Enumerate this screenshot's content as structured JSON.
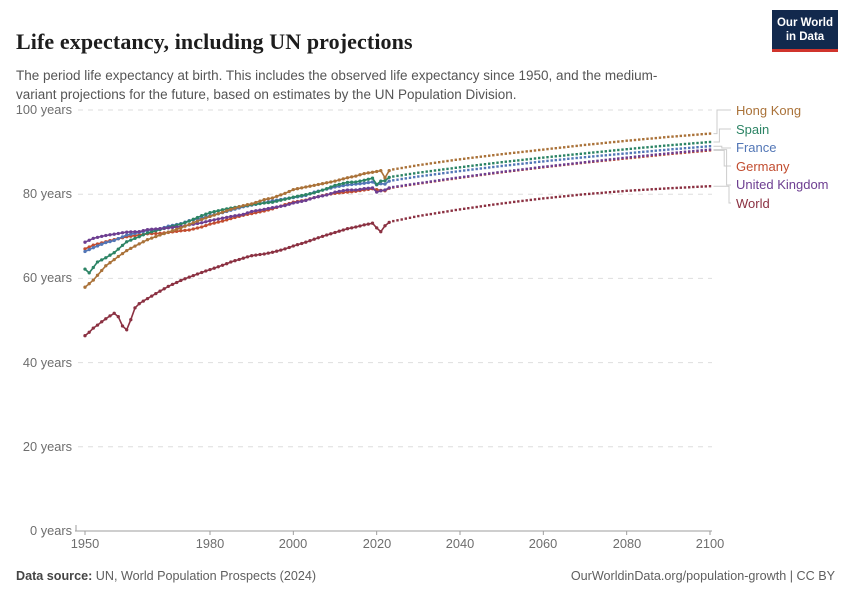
{
  "header": {
    "title": "Life expectancy, including UN projections",
    "subtitle": "The period life expectancy at birth. This includes the observed life expectancy since 1950, and the medium-variant projections for the future, based on estimates by the UN Population Division.",
    "logo": {
      "line1": "Our World",
      "line2": "in Data",
      "bg_color": "#12294d",
      "accent_color": "#d0342c"
    }
  },
  "footer": {
    "source_label": "Data source:",
    "source_text": "UN, World Population Prospects (2024)",
    "link_text": "OurWorldinData.org/population-growth | CC BY"
  },
  "chart_data": {
    "type": "line",
    "title": "Life expectancy, including UN projections",
    "xlabel": "",
    "ylabel": "",
    "units": "years",
    "xlim": [
      1950,
      2100
    ],
    "ylim": [
      0,
      100
    ],
    "grid": "horizontal-dashed",
    "legend_position": "right-line-labels",
    "observed_end_year": 2023,
    "projection_start_year": 2024,
    "projection_style": "dotted",
    "x_ticks": [
      1950,
      1980,
      2000,
      2020,
      2040,
      2060,
      2080,
      2100
    ],
    "y_ticks": [
      {
        "value": 100,
        "label": "100 years"
      },
      {
        "value": 80,
        "label": "80 years"
      },
      {
        "value": 60,
        "label": "60 years"
      },
      {
        "value": 40,
        "label": "40 years"
      },
      {
        "value": 20,
        "label": "20 years"
      },
      {
        "value": 0,
        "label": "0 years"
      }
    ],
    "axis_colors": {
      "gridline": "#dedede",
      "axis_line": "#9e9e9e",
      "tick_label": "#6e6e6e",
      "connector": "#cccccc"
    },
    "series": [
      {
        "name": "Hong Kong",
        "color": "#AA7239",
        "observed": [
          [
            1950,
            57.9
          ],
          [
            1952,
            59.6
          ],
          [
            1955,
            63.0
          ],
          [
            1958,
            65.2
          ],
          [
            1960,
            66.6
          ],
          [
            1963,
            68.2
          ],
          [
            1965,
            69.2
          ],
          [
            1968,
            70.3
          ],
          [
            1970,
            71.0
          ],
          [
            1973,
            72.0
          ],
          [
            1975,
            72.8
          ],
          [
            1978,
            74.0
          ],
          [
            1980,
            74.7
          ],
          [
            1983,
            75.7
          ],
          [
            1985,
            76.4
          ],
          [
            1988,
            77.3
          ],
          [
            1990,
            77.7
          ],
          [
            1993,
            78.7
          ],
          [
            1995,
            79.1
          ],
          [
            1998,
            80.2
          ],
          [
            2000,
            81.1
          ],
          [
            2003,
            81.7
          ],
          [
            2005,
            82.1
          ],
          [
            2008,
            82.7
          ],
          [
            2010,
            83.1
          ],
          [
            2013,
            83.9
          ],
          [
            2015,
            84.3
          ],
          [
            2017,
            84.9
          ],
          [
            2019,
            85.2
          ],
          [
            2020,
            85.4
          ],
          [
            2021,
            85.6
          ],
          [
            2022,
            83.9
          ],
          [
            2023,
            85.6
          ]
        ],
        "projection": [
          [
            2024,
            85.9
          ],
          [
            2030,
            86.9
          ],
          [
            2040,
            88.3
          ],
          [
            2050,
            89.5
          ],
          [
            2060,
            90.6
          ],
          [
            2070,
            91.7
          ],
          [
            2080,
            92.7
          ],
          [
            2090,
            93.6
          ],
          [
            2100,
            94.4
          ]
        ]
      },
      {
        "name": "Spain",
        "color": "#2C8465",
        "observed": [
          [
            1950,
            62.2
          ],
          [
            1951,
            61.3
          ],
          [
            1953,
            63.9
          ],
          [
            1955,
            64.9
          ],
          [
            1957,
            66.1
          ],
          [
            1960,
            68.7
          ],
          [
            1963,
            69.9
          ],
          [
            1965,
            70.8
          ],
          [
            1968,
            71.6
          ],
          [
            1970,
            72.1
          ],
          [
            1973,
            72.9
          ],
          [
            1975,
            73.6
          ],
          [
            1978,
            74.9
          ],
          [
            1980,
            75.6
          ],
          [
            1983,
            76.3
          ],
          [
            1985,
            76.7
          ],
          [
            1988,
            77.2
          ],
          [
            1990,
            77.5
          ],
          [
            1993,
            77.9
          ],
          [
            1995,
            78.1
          ],
          [
            1998,
            78.8
          ],
          [
            2000,
            79.3
          ],
          [
            2003,
            79.9
          ],
          [
            2005,
            80.3
          ],
          [
            2008,
            81.3
          ],
          [
            2010,
            82.1
          ],
          [
            2013,
            82.8
          ],
          [
            2015,
            82.9
          ],
          [
            2017,
            83.3
          ],
          [
            2019,
            83.8
          ],
          [
            2020,
            82.3
          ],
          [
            2021,
            83.1
          ],
          [
            2022,
            83.2
          ],
          [
            2023,
            84.0
          ]
        ],
        "projection": [
          [
            2024,
            84.2
          ],
          [
            2030,
            85.1
          ],
          [
            2040,
            86.4
          ],
          [
            2050,
            87.6
          ],
          [
            2060,
            88.7
          ],
          [
            2070,
            89.7
          ],
          [
            2080,
            90.7
          ],
          [
            2090,
            91.6
          ],
          [
            2100,
            92.4
          ]
        ]
      },
      {
        "name": "France",
        "color": "#5276B6",
        "observed": [
          [
            1950,
            66.4
          ],
          [
            1952,
            67.3
          ],
          [
            1955,
            68.5
          ],
          [
            1957,
            69.0
          ],
          [
            1960,
            70.3
          ],
          [
            1963,
            70.9
          ],
          [
            1965,
            71.4
          ],
          [
            1968,
            71.8
          ],
          [
            1970,
            72.4
          ],
          [
            1973,
            73.0
          ],
          [
            1975,
            73.7
          ],
          [
            1978,
            74.3
          ],
          [
            1980,
            74.9
          ],
          [
            1983,
            75.6
          ],
          [
            1985,
            76.2
          ],
          [
            1988,
            77.0
          ],
          [
            1990,
            77.4
          ],
          [
            1993,
            78.0
          ],
          [
            1995,
            78.4
          ],
          [
            1998,
            78.9
          ],
          [
            2000,
            79.2
          ],
          [
            2003,
            79.7
          ],
          [
            2005,
            80.5
          ],
          [
            2008,
            81.2
          ],
          [
            2010,
            81.7
          ],
          [
            2013,
            82.2
          ],
          [
            2015,
            82.4
          ],
          [
            2017,
            82.6
          ],
          [
            2019,
            82.9
          ],
          [
            2020,
            82.2
          ],
          [
            2021,
            82.5
          ],
          [
            2022,
            82.4
          ],
          [
            2023,
            83.1
          ]
        ],
        "projection": [
          [
            2024,
            83.3
          ],
          [
            2030,
            84.2
          ],
          [
            2040,
            85.5
          ],
          [
            2050,
            86.7
          ],
          [
            2060,
            87.8
          ],
          [
            2070,
            88.8
          ],
          [
            2080,
            89.7
          ],
          [
            2090,
            90.6
          ],
          [
            2100,
            91.4
          ]
        ]
      },
      {
        "name": "Germany",
        "color": "#C24D30",
        "observed": [
          [
            1950,
            67.0
          ],
          [
            1952,
            67.9
          ],
          [
            1955,
            68.7
          ],
          [
            1957,
            69.2
          ],
          [
            1960,
            69.9
          ],
          [
            1963,
            70.3
          ],
          [
            1965,
            70.6
          ],
          [
            1968,
            70.7
          ],
          [
            1970,
            70.9
          ],
          [
            1973,
            71.3
          ],
          [
            1975,
            71.5
          ],
          [
            1978,
            72.2
          ],
          [
            1980,
            72.9
          ],
          [
            1983,
            73.6
          ],
          [
            1985,
            74.2
          ],
          [
            1988,
            75.0
          ],
          [
            1990,
            75.4
          ],
          [
            1993,
            76.0
          ],
          [
            1995,
            76.5
          ],
          [
            1998,
            77.5
          ],
          [
            2000,
            78.1
          ],
          [
            2003,
            78.6
          ],
          [
            2005,
            79.2
          ],
          [
            2008,
            79.9
          ],
          [
            2010,
            80.2
          ],
          [
            2013,
            80.5
          ],
          [
            2015,
            80.7
          ],
          [
            2017,
            81.0
          ],
          [
            2019,
            81.3
          ],
          [
            2020,
            81.1
          ],
          [
            2021,
            80.9
          ],
          [
            2022,
            80.8
          ],
          [
            2023,
            81.4
          ]
        ],
        "projection": [
          [
            2024,
            81.6
          ],
          [
            2030,
            82.5
          ],
          [
            2040,
            83.9
          ],
          [
            2050,
            85.2
          ],
          [
            2060,
            86.4
          ],
          [
            2070,
            87.5
          ],
          [
            2080,
            88.5
          ],
          [
            2090,
            89.5
          ],
          [
            2100,
            90.4
          ]
        ]
      },
      {
        "name": "United Kingdom",
        "color": "#6D3E91",
        "observed": [
          [
            1950,
            68.6
          ],
          [
            1952,
            69.5
          ],
          [
            1955,
            70.2
          ],
          [
            1957,
            70.5
          ],
          [
            1960,
            71.0
          ],
          [
            1963,
            71.1
          ],
          [
            1965,
            71.6
          ],
          [
            1968,
            71.8
          ],
          [
            1970,
            72.0
          ],
          [
            1973,
            72.3
          ],
          [
            1975,
            72.7
          ],
          [
            1978,
            73.2
          ],
          [
            1980,
            73.7
          ],
          [
            1983,
            74.3
          ],
          [
            1985,
            74.7
          ],
          [
            1988,
            75.2
          ],
          [
            1990,
            75.9
          ],
          [
            1993,
            76.4
          ],
          [
            1995,
            76.8
          ],
          [
            1998,
            77.3
          ],
          [
            2000,
            77.9
          ],
          [
            2003,
            78.5
          ],
          [
            2005,
            79.2
          ],
          [
            2008,
            79.8
          ],
          [
            2010,
            80.5
          ],
          [
            2013,
            81.0
          ],
          [
            2015,
            81.0
          ],
          [
            2017,
            81.3
          ],
          [
            2019,
            81.5
          ],
          [
            2020,
            80.5
          ],
          [
            2021,
            80.8
          ],
          [
            2022,
            81.0
          ],
          [
            2023,
            81.5
          ]
        ],
        "projection": [
          [
            2024,
            81.7
          ],
          [
            2030,
            82.6
          ],
          [
            2040,
            84.0
          ],
          [
            2050,
            85.3
          ],
          [
            2060,
            86.5
          ],
          [
            2070,
            87.6
          ],
          [
            2080,
            88.7
          ],
          [
            2090,
            89.7
          ],
          [
            2100,
            90.6
          ]
        ]
      },
      {
        "name": "World",
        "color": "#8B3142",
        "observed": [
          [
            1950,
            46.4
          ],
          [
            1951,
            47.2
          ],
          [
            1952,
            48.2
          ],
          [
            1953,
            48.9
          ],
          [
            1954,
            49.7
          ],
          [
            1955,
            50.4
          ],
          [
            1956,
            51.1
          ],
          [
            1957,
            51.7
          ],
          [
            1958,
            50.9
          ],
          [
            1959,
            48.7
          ],
          [
            1960,
            47.8
          ],
          [
            1961,
            50.2
          ],
          [
            1962,
            53.0
          ],
          [
            1963,
            54.0
          ],
          [
            1965,
            55.2
          ],
          [
            1967,
            56.4
          ],
          [
            1970,
            58.1
          ],
          [
            1973,
            59.5
          ],
          [
            1975,
            60.3
          ],
          [
            1978,
            61.4
          ],
          [
            1980,
            62.1
          ],
          [
            1983,
            63.1
          ],
          [
            1985,
            63.9
          ],
          [
            1988,
            64.8
          ],
          [
            1990,
            65.4
          ],
          [
            1993,
            65.8
          ],
          [
            1995,
            66.2
          ],
          [
            1998,
            67.0
          ],
          [
            2000,
            67.7
          ],
          [
            2003,
            68.6
          ],
          [
            2005,
            69.3
          ],
          [
            2008,
            70.3
          ],
          [
            2010,
            70.9
          ],
          [
            2013,
            71.8
          ],
          [
            2015,
            72.2
          ],
          [
            2017,
            72.7
          ],
          [
            2019,
            73.1
          ],
          [
            2020,
            72.0
          ],
          [
            2021,
            71.1
          ],
          [
            2022,
            72.5
          ],
          [
            2023,
            73.3
          ]
        ],
        "projection": [
          [
            2024,
            73.6
          ],
          [
            2030,
            74.8
          ],
          [
            2040,
            76.4
          ],
          [
            2050,
            77.8
          ],
          [
            2060,
            79.0
          ],
          [
            2070,
            80.0
          ],
          [
            2080,
            80.8
          ],
          [
            2090,
            81.4
          ],
          [
            2100,
            81.9
          ]
        ]
      }
    ]
  }
}
